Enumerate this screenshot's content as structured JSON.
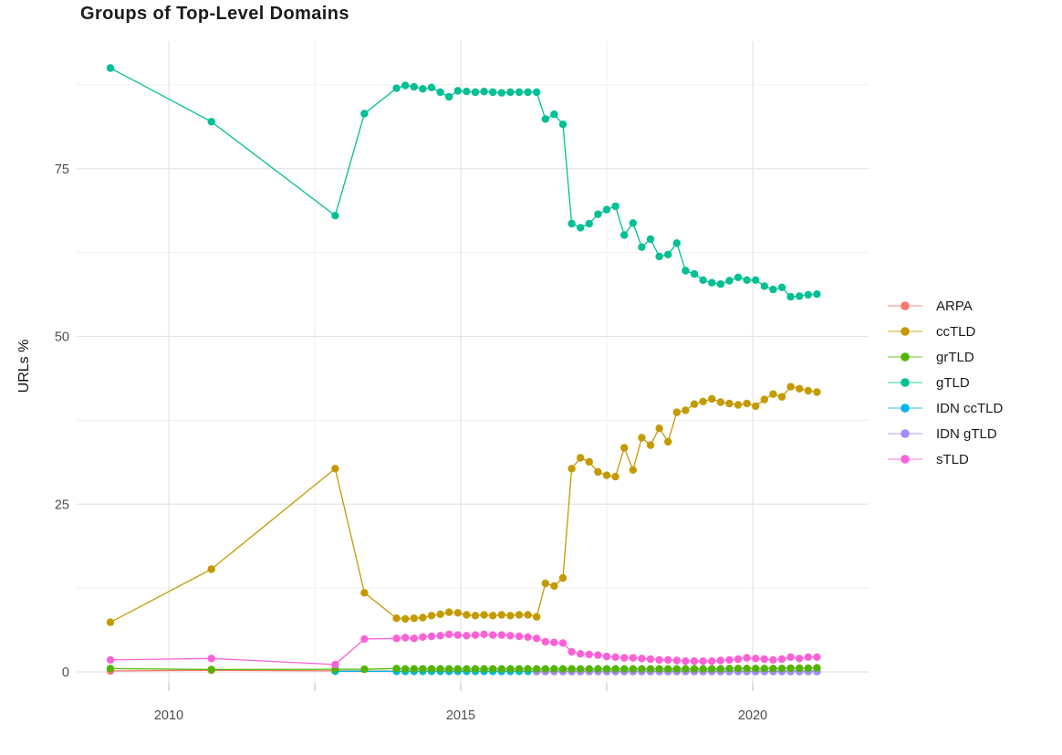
{
  "chart_data": {
    "type": "line",
    "title": "Groups of Top-Level Domains",
    "xlabel": "",
    "ylabel": "URLs %",
    "grid": true,
    "legend_position": "right",
    "x_axis": {
      "ticks": [
        2010,
        2015,
        2020
      ],
      "labels": [
        "2010",
        "2015",
        "2020"
      ],
      "minor_ticks": [
        2012.5,
        2017.5
      ],
      "range": [
        2008.5,
        2022
      ]
    },
    "y_axis": {
      "ticks": [
        0,
        25,
        50,
        75
      ],
      "labels": [
        "0",
        "25",
        "50",
        "75"
      ],
      "minor_ticks": [
        12.5,
        37.5,
        62.5,
        87.5
      ],
      "range": [
        -4,
        94
      ]
    },
    "x_grid": [
      2013.9,
      2014.05,
      2014.2,
      2014.35,
      2014.5,
      2014.65,
      2014.8,
      2014.95,
      2015.1,
      2015.25,
      2015.4,
      2015.55,
      2015.7,
      2015.85,
      2016,
      2016.15,
      2016.3,
      2016.45,
      2016.6,
      2016.75,
      2016.9,
      2017.05,
      2017.2,
      2017.35,
      2017.5,
      2017.65,
      2017.8,
      2017.95,
      2018.1,
      2018.25,
      2018.4,
      2018.55,
      2018.7,
      2018.85,
      2019,
      2019.15,
      2019.3,
      2019.45,
      2019.6,
      2019.75,
      2019.9,
      2020.05,
      2020.2,
      2020.35,
      2020.5,
      2020.65,
      2020.8,
      2020.95,
      2021.1
    ],
    "series": [
      {
        "name": "ARPA",
        "color": "#F8766D",
        "grid_offset": 0,
        "pre": [
          [
            2009,
            0.15
          ],
          [
            2010.73,
            0.25
          ],
          [
            2012.85,
            0.15
          ]
        ],
        "grid_y": [
          0.12,
          0.12,
          0.12,
          0.12,
          0.12,
          0.12,
          0.12,
          0.12,
          0.12,
          0.12,
          0.12,
          0.12,
          0.12,
          0.12,
          0.12,
          0.12,
          0.12,
          0.12,
          0.12,
          0.12,
          0.12,
          0.12,
          0.12,
          0.12,
          0.12,
          0.12,
          0.12,
          0.12,
          0.12,
          0.12,
          0.12,
          0.12,
          0.12,
          0.12,
          0.12,
          0.12,
          0.12,
          0.12,
          0.12,
          0.12,
          0.12,
          0.12,
          0.12,
          0.12,
          0.12,
          0.12,
          0.12,
          0.12,
          0.12
        ]
      },
      {
        "name": "ccTLD",
        "color": "#C49A00",
        "grid_offset": 0,
        "pre": [
          [
            2009,
            7.4
          ],
          [
            2010.73,
            15.3
          ],
          [
            2012.85,
            30.3
          ],
          [
            2013.35,
            11.8
          ]
        ],
        "grid_y": [
          8.0,
          7.9,
          8.0,
          8.1,
          8.4,
          8.6,
          8.9,
          8.8,
          8.5,
          8.4,
          8.5,
          8.4,
          8.5,
          8.4,
          8.5,
          8.5,
          8.2,
          13.2,
          12.8,
          14.0,
          30.3,
          31.9,
          31.3,
          29.8,
          29.3,
          29.1,
          33.4,
          30.1,
          34.9,
          33.8,
          36.3,
          34.3,
          38.7,
          39.0,
          39.9,
          40.3,
          40.7,
          40.2,
          40.0,
          39.8,
          40.0,
          39.6,
          40.6,
          41.4,
          41.0,
          42.5,
          42.2,
          41.9,
          41.7
        ]
      },
      {
        "name": "grTLD",
        "color": "#53B400",
        "grid_offset": 0,
        "pre": [
          [
            2009,
            0.5
          ],
          [
            2010.73,
            0.35
          ],
          [
            2012.85,
            0.4
          ],
          [
            2013.35,
            0.4
          ]
        ],
        "grid_y": [
          0.5,
          0.45,
          0.45,
          0.45,
          0.45,
          0.45,
          0.45,
          0.45,
          0.45,
          0.45,
          0.45,
          0.45,
          0.45,
          0.45,
          0.45,
          0.45,
          0.45,
          0.45,
          0.45,
          0.45,
          0.45,
          0.45,
          0.45,
          0.45,
          0.45,
          0.45,
          0.45,
          0.45,
          0.45,
          0.45,
          0.45,
          0.45,
          0.45,
          0.45,
          0.45,
          0.45,
          0.45,
          0.45,
          0.5,
          0.5,
          0.5,
          0.5,
          0.5,
          0.5,
          0.5,
          0.55,
          0.55,
          0.55,
          0.6
        ]
      },
      {
        "name": "gTLD",
        "color": "#00C094",
        "grid_offset": 0,
        "pre": [
          [
            2009,
            90
          ],
          [
            2010.73,
            82
          ],
          [
            2012.85,
            68
          ],
          [
            2013.35,
            83.2
          ]
        ],
        "grid_y": [
          87.0,
          87.4,
          87.2,
          86.9,
          87.1,
          86.4,
          85.7,
          86.6,
          86.5,
          86.4,
          86.5,
          86.4,
          86.3,
          86.4,
          86.4,
          86.4,
          86.4,
          82.4,
          83.1,
          81.6,
          66.8,
          66.2,
          66.8,
          68.2,
          68.9,
          69.4,
          65.1,
          66.9,
          63.3,
          64.5,
          61.9,
          62.2,
          63.9,
          59.8,
          59.3,
          58.4,
          58.0,
          57.8,
          58.3,
          58.8,
          58.4,
          58.4,
          57.5,
          57.0,
          57.3,
          55.9,
          56.0,
          56.2,
          56.3
        ]
      },
      {
        "name": "IDN ccTLD",
        "color": "#00B6EB",
        "grid_offset": 0,
        "pre": [
          [
            2012.85,
            0.1
          ]
        ],
        "grid_y": [
          0.08,
          0.08,
          0.08,
          0.08,
          0.08,
          0.08,
          0.08,
          0.08,
          0.08,
          0.08,
          0.08,
          0.08,
          0.08,
          0.08,
          0.08,
          0.08,
          0.08,
          0.08,
          0.08,
          0.08,
          0.08,
          0.08,
          0.08,
          0.08,
          0.08,
          0.08,
          0.08,
          0.08,
          0.08,
          0.08,
          0.08,
          0.08,
          0.08,
          0.08,
          0.08,
          0.08,
          0.08,
          0.08,
          0.08,
          0.08,
          0.08,
          0.08,
          0.08,
          0.08,
          0.08,
          0.08,
          0.08,
          0.08,
          0.08
        ]
      },
      {
        "name": "IDN gTLD",
        "color": "#A58AFF",
        "grid_offset": 16,
        "pre": [],
        "grid_y": [
          0.05,
          0.05,
          0.05,
          0.05,
          0.05,
          0.05,
          0.05,
          0.05,
          0.05,
          0.05,
          0.05,
          0.05,
          0.05,
          0.05,
          0.05,
          0.05,
          0.05,
          0.05,
          0.05,
          0.05,
          0.05,
          0.05,
          0.05,
          0.05,
          0.05,
          0.05,
          0.05,
          0.05,
          0.05,
          0.05,
          0.05,
          0.05,
          0.05
        ]
      },
      {
        "name": "sTLD",
        "color": "#FB61D7",
        "grid_offset": 0,
        "pre": [
          [
            2009,
            1.8
          ],
          [
            2010.73,
            2.0
          ],
          [
            2012.85,
            1.1
          ],
          [
            2013.35,
            4.9
          ]
        ],
        "grid_y": [
          5.0,
          5.1,
          5.0,
          5.2,
          5.3,
          5.4,
          5.6,
          5.5,
          5.4,
          5.5,
          5.6,
          5.5,
          5.5,
          5.4,
          5.3,
          5.2,
          5.0,
          4.5,
          4.4,
          4.3,
          3.0,
          2.7,
          2.6,
          2.5,
          2.3,
          2.2,
          2.1,
          2.1,
          2.0,
          1.9,
          1.8,
          1.8,
          1.7,
          1.6,
          1.6,
          1.6,
          1.6,
          1.7,
          1.8,
          1.9,
          2.1,
          2.0,
          1.9,
          1.8,
          1.9,
          2.2,
          2.0,
          2.2,
          2.2
        ]
      }
    ],
    "style": {
      "grid_major_color": "#e4e4e4",
      "grid_minor_color": "#efefef",
      "tick_mark_color": "#c9c9c9",
      "tick_label_color": "#4d4d4d",
      "title_color": "#1b1b1b"
    }
  }
}
